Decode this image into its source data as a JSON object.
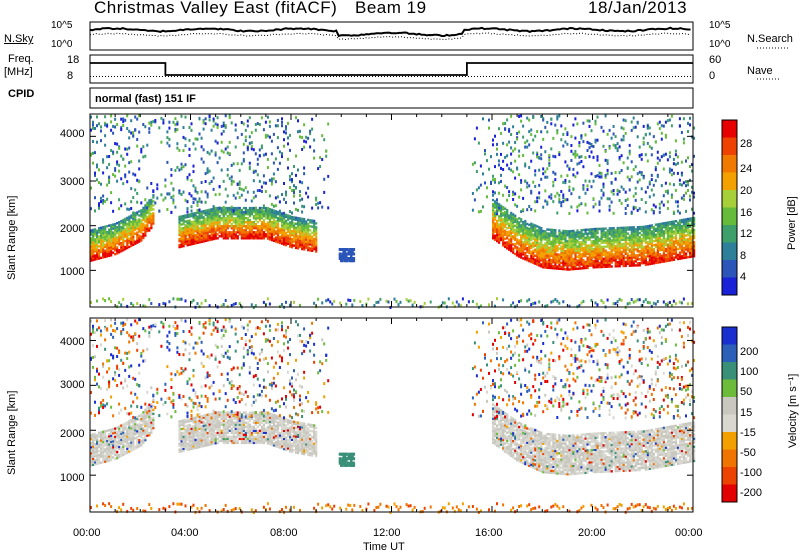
{
  "header": {
    "station": "Christmas Valley East (fitACF)",
    "beam": "Beam 19",
    "date": "18/Jan/2013"
  },
  "noise_panel": {
    "left_label": "N.Sky",
    "right_label": "N.Search",
    "left_ticks": [
      "10^5",
      "10^0"
    ],
    "right_ticks": [
      "10^5",
      "10^0"
    ]
  },
  "freq_panel": {
    "left_label_line1": "Freq.",
    "left_label_line2": "[MHz]",
    "right_label": "Nave",
    "left_ticks": [
      "18",
      "8"
    ],
    "right_ticks": [
      "60",
      "0"
    ]
  },
  "cpid_panel": {
    "label": "CPID",
    "mode": "normal (fast) 151 IF"
  },
  "colors": {
    "power": [
      "#1a22d8",
      "#2b55b8",
      "#2e7f99",
      "#3f9f6a",
      "#66bb3a",
      "#a6cf3a",
      "#f3a100",
      "#f07a00",
      "#ee4200",
      "#e60000"
    ],
    "velocity": [
      "#1a2fcf",
      "#2b5fb8",
      "#3a8f78",
      "#6cbb3a",
      "#c8c8c0",
      "#d8d8d0",
      "#f2a000",
      "#ef7400",
      "#ec4400",
      "#e20000"
    ]
  },
  "chart_data": [
    {
      "type": "heatmap",
      "name": "power",
      "ylabel": "Slant Range [km]",
      "yticks": [
        1000,
        2000,
        3000,
        4000
      ],
      "ylim": [
        180,
        4500
      ],
      "colorbar_label": "Power [dB]",
      "colorbar_ticks": [
        "4",
        "8",
        "12",
        "16",
        "20",
        "24",
        "28"
      ],
      "colorbar_range": [
        0,
        32
      ],
      "main_band_lower_edge_km": {
        "x": [
          "00:00",
          "01:00",
          "02:00",
          "02:30",
          "03:00",
          "03:30",
          "05:00",
          "07:00",
          "08:00",
          "09:00",
          "10:00",
          "14:30",
          "16:00",
          "17:00",
          "18:00",
          "19:00",
          "20:00",
          "22:00",
          "00:00"
        ],
        "y": [
          1200,
          1350,
          1650,
          2000,
          null,
          1500,
          1700,
          1700,
          1500,
          1400,
          null,
          null,
          1700,
          1300,
          1050,
          1000,
          1050,
          1100,
          1300
        ]
      }
    },
    {
      "type": "heatmap",
      "name": "velocity",
      "ylabel": "Slant Range [km]",
      "yticks": [
        1000,
        2000,
        3000,
        4000
      ],
      "ylim": [
        180,
        4500
      ],
      "colorbar_label": "Velocity [m s⁻¹]",
      "colorbar_ticks": [
        "-200",
        "-100",
        "-50",
        "-15",
        "15",
        "50",
        "100",
        "200"
      ],
      "xlabel": "Time UT",
      "xticks": [
        "00:00",
        "04:00",
        "08:00",
        "12:00",
        "16:00",
        "20:00",
        "00:00"
      ]
    }
  ]
}
